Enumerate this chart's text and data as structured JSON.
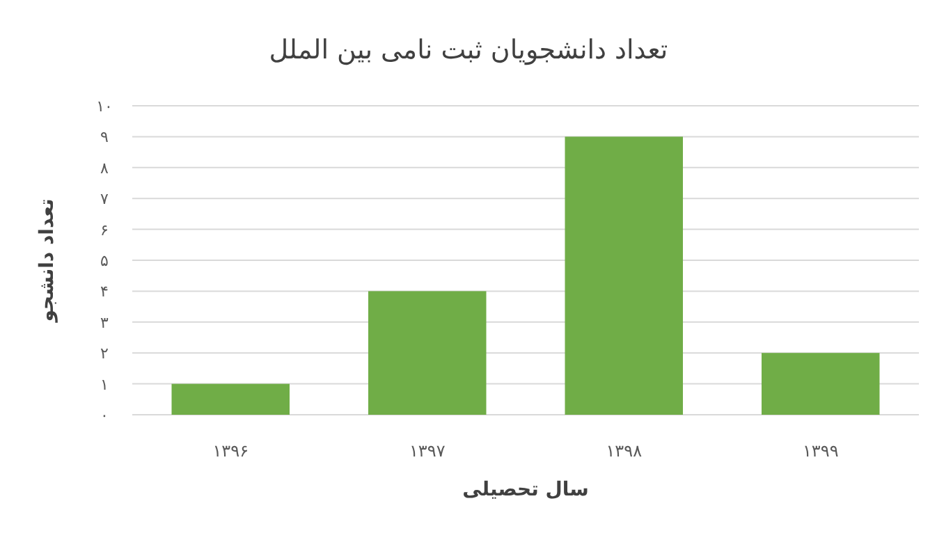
{
  "chart_data": {
    "type": "bar",
    "title": "تعداد دانشجویان ثبت نامی بین الملل",
    "xlabel": "سال تحصیلی",
    "ylabel": "تعداد دانشجو",
    "categories": [
      "۱۳۹۶",
      "۱۳۹۷",
      "۱۳۹۸",
      "۱۳۹۹"
    ],
    "values": [
      1,
      4,
      9,
      2
    ],
    "color": "#70ad47",
    "ylim": [
      0,
      10
    ],
    "yticks": [
      {
        "value": 0,
        "label": "۰"
      },
      {
        "value": 1,
        "label": "۱"
      },
      {
        "value": 2,
        "label": "۲"
      },
      {
        "value": 3,
        "label": "۳"
      },
      {
        "value": 4,
        "label": "۴"
      },
      {
        "value": 5,
        "label": "۵"
      },
      {
        "value": 6,
        "label": "۶"
      },
      {
        "value": 7,
        "label": "۷"
      },
      {
        "value": 8,
        "label": "۸"
      },
      {
        "value": 9,
        "label": "۹"
      },
      {
        "value": 10,
        "label": "۱۰"
      }
    ],
    "grid": "y"
  }
}
